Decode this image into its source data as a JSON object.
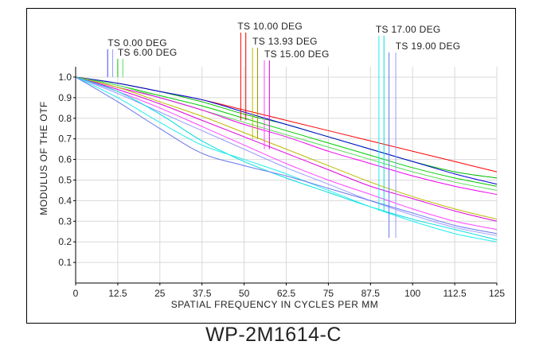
{
  "chart_data": {
    "type": "line",
    "title": "",
    "xlabel": "SPATIAL FREQUENCY IN CYCLES PER MM",
    "ylabel": "MODULUS OF THE OTF",
    "xlim": [
      0,
      125
    ],
    "ylim": [
      0,
      1.05
    ],
    "xticks": [
      "0",
      "12.5",
      "25",
      "37.5",
      "50",
      "62.5",
      "75",
      "87.5",
      "100",
      "112.5",
      "125"
    ],
    "yticks": [
      "0.1",
      "0.2",
      "0.3",
      "0.4",
      "0.5",
      "0.6",
      "0.7",
      "0.8",
      "0.9",
      "1.0"
    ],
    "grid": true,
    "x": [
      0,
      12.5,
      25,
      37.5,
      50,
      62.5,
      75,
      87.5,
      100,
      112.5,
      125
    ],
    "series": [
      {
        "color": "#ff0000",
        "values": [
          1.0,
          0.97,
          0.93,
          0.89,
          0.84,
          0.79,
          0.74,
          0.69,
          0.64,
          0.59,
          0.54
        ]
      },
      {
        "color": "#00bb00",
        "values": [
          1.0,
          0.97,
          0.93,
          0.88,
          0.82,
          0.77,
          0.71,
          0.65,
          0.59,
          0.54,
          0.51
        ]
      },
      {
        "color": "#0000dd",
        "values": [
          1.0,
          0.97,
          0.93,
          0.89,
          0.83,
          0.77,
          0.71,
          0.65,
          0.59,
          0.53,
          0.48
        ]
      },
      {
        "color": "#00cc00",
        "values": [
          1.0,
          0.96,
          0.91,
          0.86,
          0.8,
          0.74,
          0.68,
          0.62,
          0.56,
          0.51,
          0.47
        ]
      },
      {
        "color": "#55dd55",
        "values": [
          1.0,
          0.96,
          0.9,
          0.84,
          0.78,
          0.72,
          0.66,
          0.6,
          0.54,
          0.49,
          0.45
        ]
      },
      {
        "color": "#ee00ee",
        "values": [
          1.0,
          0.95,
          0.9,
          0.84,
          0.77,
          0.71,
          0.64,
          0.58,
          0.52,
          0.47,
          0.43
        ]
      },
      {
        "color": "#bbbb00",
        "values": [
          1.0,
          0.95,
          0.88,
          0.81,
          0.73,
          0.65,
          0.57,
          0.49,
          0.42,
          0.36,
          0.31
        ]
      },
      {
        "color": "#dd00dd",
        "values": [
          1.0,
          0.94,
          0.87,
          0.79,
          0.71,
          0.63,
          0.55,
          0.47,
          0.41,
          0.35,
          0.3
        ]
      },
      {
        "color": "#ff44ff",
        "values": [
          1.0,
          0.93,
          0.85,
          0.76,
          0.67,
          0.58,
          0.5,
          0.43,
          0.36,
          0.3,
          0.26
        ]
      },
      {
        "color": "#9999ff",
        "values": [
          1.0,
          0.92,
          0.83,
          0.74,
          0.65,
          0.56,
          0.48,
          0.4,
          0.33,
          0.27,
          0.23
        ]
      },
      {
        "color": "#00dddd",
        "values": [
          1.0,
          0.93,
          0.82,
          0.69,
          0.59,
          0.51,
          0.44,
          0.37,
          0.31,
          0.26,
          0.21
        ]
      },
      {
        "color": "#22eeee",
        "values": [
          1.0,
          0.9,
          0.78,
          0.67,
          0.6,
          0.53,
          0.45,
          0.37,
          0.3,
          0.24,
          0.2
        ]
      },
      {
        "color": "#6677ee",
        "values": [
          1.0,
          0.88,
          0.75,
          0.63,
          0.57,
          0.52,
          0.46,
          0.4,
          0.34,
          0.28,
          0.24
        ]
      }
    ],
    "annotations": [
      {
        "text": "TS  0.00 DEG",
        "x": 9.5,
        "marker_colors": [
          "#4444ff",
          "#9999ff"
        ],
        "markers_x": [
          9.5,
          11.0
        ],
        "marker_bottom": 1.0
      },
      {
        "text": "TS  6.00 DEG",
        "x": 12.5,
        "marker_colors": [
          "#00cc00",
          "#55dd55"
        ],
        "markers_x": [
          12.5,
          14.0
        ],
        "marker_bottom": 1.0
      },
      {
        "text": "TS  10.00 DEG",
        "x": 49.0,
        "marker_colors": [
          "#ff0000",
          "#dd0000"
        ],
        "markers_x": [
          49.0,
          50.5
        ],
        "marker_bottom": 0.79
      },
      {
        "text": "TS  13.93 DEG",
        "x": 52.5,
        "marker_colors": [
          "#bbbb00",
          "#999900"
        ],
        "markers_x": [
          52.5,
          54.0
        ],
        "marker_bottom": 0.7
      },
      {
        "text": "TS  15.00 DEG",
        "x": 56.0,
        "marker_colors": [
          "#ff44ff",
          "#dd00dd"
        ],
        "markers_x": [
          56.0,
          57.5
        ],
        "marker_bottom": 0.65
      },
      {
        "text": "TS  17.00 DEG",
        "x": 90.0,
        "marker_colors": [
          "#22eeee",
          "#00dddd"
        ],
        "markers_x": [
          90.0,
          91.5
        ],
        "marker_bottom": 0.35
      },
      {
        "text": "TS  19.00 DEG",
        "x": 94.0,
        "marker_colors": [
          "#6677ee",
          "#9999ff"
        ],
        "markers_x": [
          93.0,
          95.0
        ],
        "marker_bottom": 0.22
      }
    ]
  },
  "model_name": "WP-2M1614-C"
}
